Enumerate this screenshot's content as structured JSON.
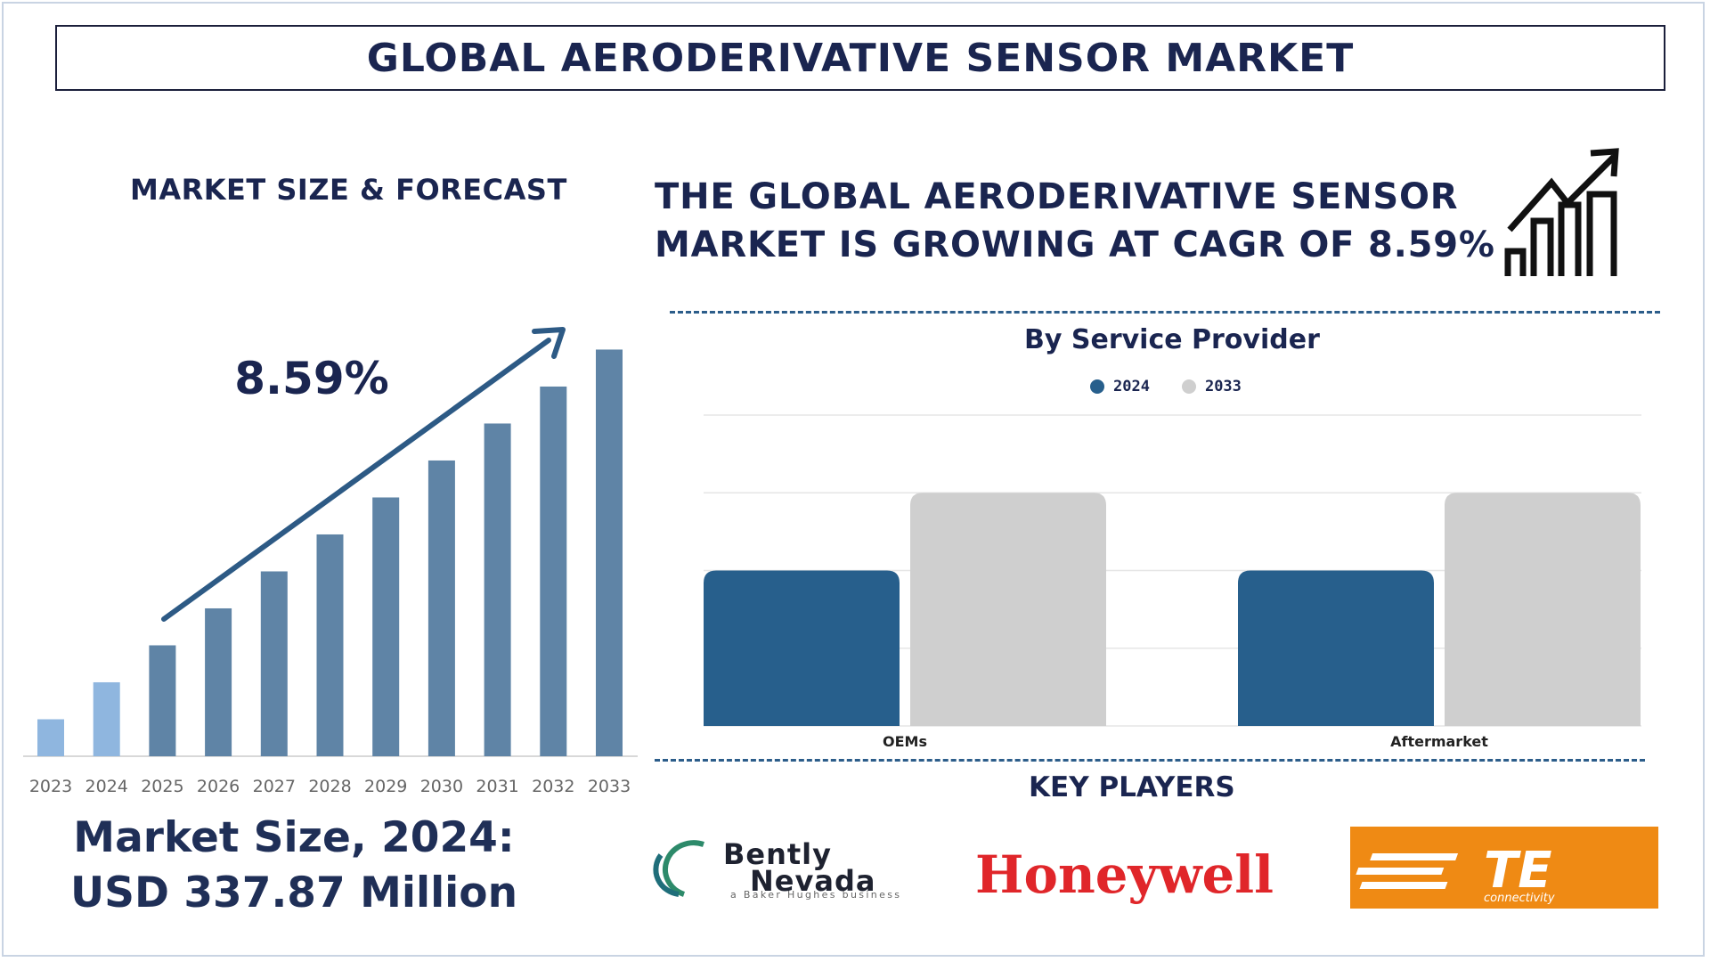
{
  "header": {
    "title": "GLOBAL AERODERIVATIVE SENSOR MARKET"
  },
  "left_panel": {
    "title": "MARKET SIZE & FORECAST",
    "cagr_label": "8.59%",
    "market_size_line1": "Market Size, 2024:",
    "market_size_line2": "USD 337.87 Million"
  },
  "right_panel": {
    "cagr_line1": "THE GLOBAL AERODERIVATIVE SENSOR",
    "cagr_line2": "MARKET IS GROWING AT CAGR OF 8.59%",
    "growth_icon": "bar-chart-growth-arrow-icon",
    "service_title": "By Service Provider",
    "key_players_title": "KEY PLAYERS"
  },
  "key_players": {
    "bently_line1": "Bently",
    "bently_line2": "Nevada",
    "bently_tagline": "a Baker Hughes business",
    "honeywell": "Honeywell",
    "te": "TE",
    "te_sub": "connectivity"
  },
  "colors": {
    "navy": "#1a2550",
    "bar_forecast": "#5f84a6",
    "bar_actual": "#8fb6df",
    "series_2024": "#275f8c",
    "series_2033": "#cfcfcf",
    "honeywell_red": "#e0262a",
    "te_orange": "#ef8a14",
    "bently_green": "#2d8a6a"
  },
  "chart_data": [
    {
      "type": "bar",
      "categories": [
        "2023",
        "2024",
        "2025",
        "2026",
        "2027",
        "2028",
        "2029",
        "2030",
        "2031",
        "2032",
        "2033"
      ],
      "values": [
        1.0,
        2.0,
        3.0,
        4.0,
        5.0,
        6.0,
        7.0,
        8.0,
        9.0,
        10.0,
        11.0
      ],
      "highlight": [
        "2023",
        "2024"
      ],
      "ylim": [
        0,
        11.3
      ],
      "title": "",
      "xlabel": "",
      "ylabel": "",
      "annotation": "8.59%",
      "grid": false
    },
    {
      "type": "bar",
      "title": "By Service Provider",
      "categories": [
        "OEMs",
        "Aftermarket"
      ],
      "series": [
        {
          "name": "2024",
          "values": [
            2.0,
            2.0
          ]
        },
        {
          "name": "2033",
          "values": [
            3.0,
            3.0
          ]
        }
      ],
      "ylim": [
        0,
        4
      ],
      "grid": true,
      "legend": "top"
    }
  ]
}
